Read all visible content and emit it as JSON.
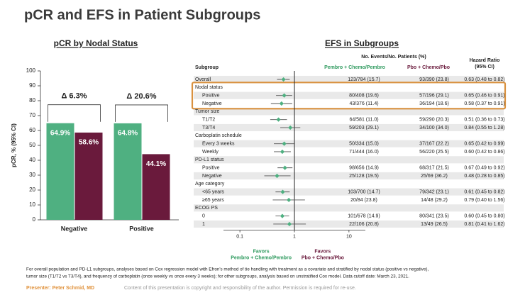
{
  "title": "pCR and EFS in Patient Subgroups",
  "chart_data": [
    {
      "type": "bar",
      "title": "pCR by Nodal Status",
      "y_label": "pCR, % (95% CI)",
      "categories": [
        "Negative",
        "Positive"
      ],
      "series": [
        {
          "color": "#4fb081",
          "values": [
            64.9,
            64.8
          ],
          "value_labels": [
            "64.9%",
            "64.8%"
          ]
        },
        {
          "color": "#6a1a3c",
          "values": [
            58.6,
            44.1
          ],
          "value_labels": [
            "58.6%",
            "44.1%"
          ]
        }
      ],
      "annotations": [
        "Δ 6.3%",
        "Δ 20.6%"
      ],
      "ylim": [
        0,
        100
      ],
      "yticks": [
        0,
        10,
        20,
        30,
        40,
        50,
        60,
        70,
        80,
        90,
        100
      ]
    },
    {
      "type": "forest",
      "title": "EFS in Subgroups",
      "headers": {
        "subgroup": "Subgroup",
        "events": "No. Events/No. Patients (%)",
        "arm1": "Pembro + Chemo/Pembro",
        "arm2": "Pbo + Chemo/Pbo",
        "hr": [
          "Hazard Ratio",
          "(95% CI)"
        ]
      },
      "arm1_color": "#2e9a5e",
      "arm2_color": "#6a1a3c",
      "point_color": "#4fb081",
      "rows": [
        {
          "label": "Overall",
          "arm1": "123/784 (15.7)",
          "arm2": "93/390 (23.8)",
          "hr_label": "0.63 (0.48 to 0.82)",
          "hr": 0.63,
          "lo": 0.48,
          "hi": 0.82
        },
        {
          "label": "Nodal status"
        },
        {
          "label": "Positive",
          "arm1": "80/408 (19.6)",
          "arm2": "57/196 (29.1)",
          "hr_label": "0.65 (0.46 to 0.91)",
          "hr": 0.65,
          "lo": 0.46,
          "hi": 0.91
        },
        {
          "label": "Negative",
          "arm1": "43/376 (11.4)",
          "arm2": "36/194 (18.6)",
          "hr_label": "0.58 (0.37 to 0.91)",
          "hr": 0.58,
          "lo": 0.37,
          "hi": 0.91
        },
        {
          "label": "Tumor size"
        },
        {
          "label": "T1/T2",
          "arm1": "64/581 (11.0)",
          "arm2": "59/290 (20.3)",
          "hr_label": "0.51 (0.36 to 0.73)",
          "hr": 0.51,
          "lo": 0.36,
          "hi": 0.73
        },
        {
          "label": "T3/T4",
          "arm1": "59/203 (29.1)",
          "arm2": "34/100 (34.0)",
          "hr_label": "0.84 (0.55 to 1.28)",
          "hr": 0.84,
          "lo": 0.55,
          "hi": 1.28
        },
        {
          "label": "Carboplatin schedule"
        },
        {
          "label": "Every 3 weeks",
          "arm1": "50/334 (15.0)",
          "arm2": "37/167 (22.2)",
          "hr_label": "0.65 (0.42 to 0.99)",
          "hr": 0.65,
          "lo": 0.42,
          "hi": 0.99
        },
        {
          "label": "Weekly",
          "arm1": "71/444 (16.0)",
          "arm2": "56/220 (25.5)",
          "hr_label": "0.60 (0.42 to 0.86)",
          "hr": 0.6,
          "lo": 0.42,
          "hi": 0.86
        },
        {
          "label": "PD-L1 status"
        },
        {
          "label": "Positive",
          "arm1": "98/656 (14.9)",
          "arm2": "68/317 (21.5)",
          "hr_label": "0.67 (0.49 to 0.92)",
          "hr": 0.67,
          "lo": 0.49,
          "hi": 0.92
        },
        {
          "label": "Negative",
          "arm1": "25/128 (19.5)",
          "arm2": "25/69 (36.2)",
          "hr_label": "0.48 (0.28 to 0.85)",
          "hr": 0.48,
          "lo": 0.28,
          "hi": 0.85
        },
        {
          "label": "Age category"
        },
        {
          "label": "<65 years",
          "arm1": "103/700 (14.7)",
          "arm2": "79/342 (23.1)",
          "hr_label": "0.61 (0.45 to 0.82)",
          "hr": 0.61,
          "lo": 0.45,
          "hi": 0.82
        },
        {
          "label": "≥65 years",
          "arm1": "20/84 (23.8)",
          "arm2": "14/48 (29.2)",
          "hr_label": "0.79 (0.40 to 1.56)",
          "hr": 0.79,
          "lo": 0.4,
          "hi": 1.56
        },
        {
          "label": "ECOG PS"
        },
        {
          "label": "0",
          "arm1": "101/678 (14.9)",
          "arm2": "80/341 (23.5)",
          "hr_label": "0.60 (0.45 to 0.80)",
          "hr": 0.6,
          "lo": 0.45,
          "hi": 0.8
        },
        {
          "label": "1",
          "arm1": "22/106 (20.8)",
          "arm2": "13/49 (26.5)",
          "hr_label": "0.81 (0.41 to 1.62)",
          "hr": 0.81,
          "lo": 0.41,
          "hi": 1.62
        }
      ],
      "log_x": true,
      "xlim": [
        0.05,
        20
      ],
      "xticks": [
        0.1,
        1,
        10
      ],
      "reference_line": 1,
      "favors_left": [
        "Favors",
        "Pembro + Chemo/Pembro"
      ],
      "favors_right": [
        "Favors",
        "Pbo + Chemo/Pbo"
      ]
    }
  ],
  "footnote": [
    "For overall population and PD-L1 subgroups, analyses based on Cox regression model with Efron's method of tie handling with treatment as a covariate and stratified by nodal status (positive vs negative),",
    "tumor size (T1/T2 vs T3/T4), and frequency of carboplatin (once weekly vs once every 3 weeks); for other subgroups, analysis based on unstratified Cox model. Data cutoff date: March 23, 2021."
  ],
  "presenter": "Presenter: Peter Schmid, MD",
  "copyright": "Content of this presentation is copyright and responsibility of the author. Permission is required for re-use."
}
